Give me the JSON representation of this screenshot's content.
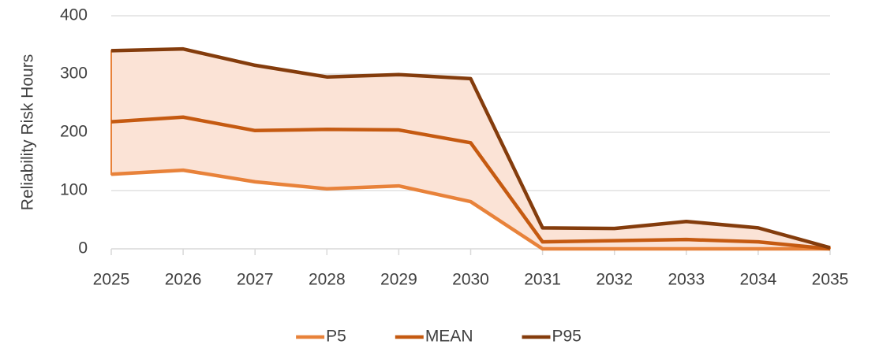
{
  "chart_data": {
    "type": "line",
    "y_label": "Reliability Risk Hours",
    "categories": [
      "2025",
      "2026",
      "2027",
      "2028",
      "2029",
      "2030",
      "2031",
      "2032",
      "2033",
      "2034",
      "2035"
    ],
    "series": [
      {
        "name": "P5",
        "color": "#e8823a",
        "values": [
          128,
          135,
          115,
          103,
          108,
          81,
          0,
          0,
          0,
          0,
          0
        ]
      },
      {
        "name": "MEAN",
        "color": "#c55a11",
        "values": [
          218,
          226,
          203,
          205,
          204,
          182,
          12,
          14,
          16,
          12,
          0
        ]
      },
      {
        "name": "P95",
        "color": "#843c0c",
        "values": [
          340,
          343,
          315,
          295,
          299,
          292,
          36,
          35,
          47,
          36,
          2
        ]
      }
    ],
    "band": {
      "between": [
        "P5",
        "P95"
      ],
      "color": "#fbe3d6"
    },
    "ylim": [
      0,
      400
    ],
    "yticks": [
      0,
      100,
      200,
      300,
      400
    ],
    "grid": true,
    "legend": "bottom"
  }
}
